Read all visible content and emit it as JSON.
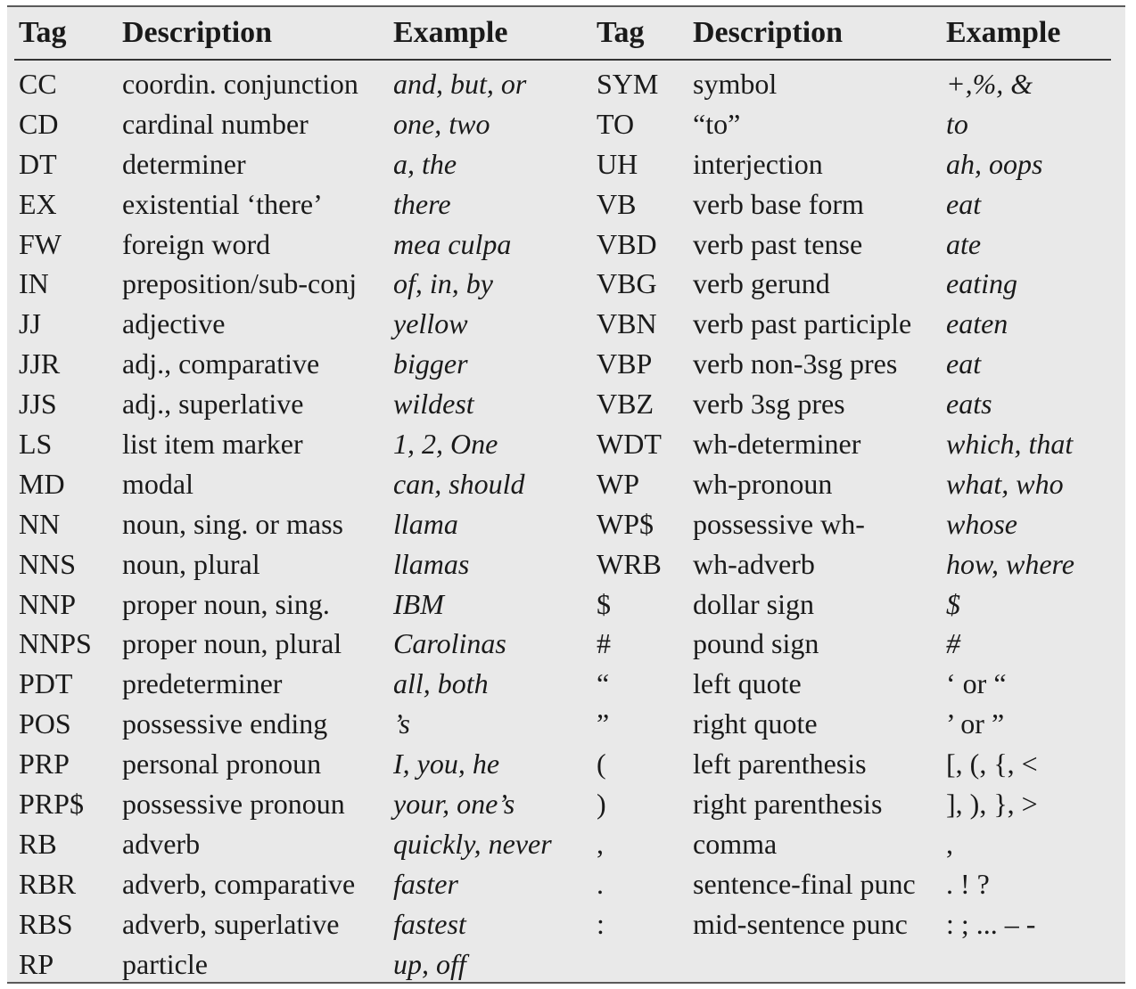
{
  "headers": [
    "Tag",
    "Description",
    "Example",
    "Tag",
    "Description",
    "Example"
  ],
  "rows": [
    {
      "tag1": "CC",
      "desc1": "coordin. conjunction",
      "ex1": "and, but, or",
      "tag2": "SYM",
      "desc2": "symbol",
      "ex2": "+,%, &"
    },
    {
      "tag1": "CD",
      "desc1": "cardinal number",
      "ex1": "one, two",
      "tag2": "TO",
      "desc2": "“to”",
      "ex2": "to"
    },
    {
      "tag1": "DT",
      "desc1": "determiner",
      "ex1": "a, the",
      "tag2": "UH",
      "desc2": "interjection",
      "ex2": "ah, oops"
    },
    {
      "tag1": "EX",
      "desc1": "existential ‘there’",
      "ex1": "there",
      "tag2": "VB",
      "desc2": "verb base form",
      "ex2": "eat"
    },
    {
      "tag1": "FW",
      "desc1": "foreign word",
      "ex1": "mea culpa",
      "tag2": "VBD",
      "desc2": "verb past tense",
      "ex2": "ate"
    },
    {
      "tag1": "IN",
      "desc1": "preposition/sub-conj",
      "ex1": "of, in, by",
      "tag2": "VBG",
      "desc2": "verb gerund",
      "ex2": "eating"
    },
    {
      "tag1": "JJ",
      "desc1": "adjective",
      "ex1": "yellow",
      "tag2": "VBN",
      "desc2": "verb past participle",
      "ex2": "eaten"
    },
    {
      "tag1": "JJR",
      "desc1": "adj., comparative",
      "ex1": "bigger",
      "tag2": "VBP",
      "desc2": "verb non-3sg pres",
      "ex2": "eat"
    },
    {
      "tag1": "JJS",
      "desc1": "adj., superlative",
      "ex1": "wildest",
      "tag2": "VBZ",
      "desc2": "verb 3sg pres",
      "ex2": "eats"
    },
    {
      "tag1": "LS",
      "desc1": "list item marker",
      "ex1": "1, 2, One",
      "tag2": "WDT",
      "desc2": "wh-determiner",
      "ex2": "which, that"
    },
    {
      "tag1": "MD",
      "desc1": "modal",
      "ex1": "can, should",
      "tag2": "WP",
      "desc2": "wh-pronoun",
      "ex2": "what, who"
    },
    {
      "tag1": "NN",
      "desc1": "noun, sing. or mass",
      "ex1": "llama",
      "tag2": "WP$",
      "desc2": "possessive wh-",
      "ex2": "whose"
    },
    {
      "tag1": "NNS",
      "desc1": "noun, plural",
      "ex1": "llamas",
      "tag2": "WRB",
      "desc2": "wh-adverb",
      "ex2": "how, where"
    },
    {
      "tag1": "NNP",
      "desc1": "proper noun, sing.",
      "ex1": "IBM",
      "tag2": "$",
      "desc2": "dollar sign",
      "ex2": "$"
    },
    {
      "tag1": "NNPS",
      "desc1": "proper noun, plural",
      "ex1": "Carolinas",
      "tag2": "#",
      "desc2": "pound sign",
      "ex2": "#"
    },
    {
      "tag1": "PDT",
      "desc1": "predeterminer",
      "ex1": "all, both",
      "tag2": "“",
      "desc2": "left quote",
      "ex2": "‘ or “",
      "ex2_plain": true
    },
    {
      "tag1": "POS",
      "desc1": "possessive ending",
      "ex1": "’s",
      "tag2": "”",
      "desc2": "right quote",
      "ex2": "’ or ”",
      "ex2_plain": true
    },
    {
      "tag1": "PRP",
      "desc1": "personal pronoun",
      "ex1": "I, you, he",
      "tag2": "(",
      "desc2": "left parenthesis",
      "ex2": "[, (, {, <",
      "ex2_plain": true
    },
    {
      "tag1": "PRP$",
      "desc1": "possessive pronoun",
      "ex1": "your, one’s",
      "tag2": ")",
      "desc2": "right parenthesis",
      "ex2": "], ), }, >",
      "ex2_plain": true
    },
    {
      "tag1": "RB",
      "desc1": "adverb",
      "ex1": "quickly, never",
      "tag2": ",",
      "desc2": "comma",
      "ex2": ",",
      "ex2_plain": true
    },
    {
      "tag1": "RBR",
      "desc1": "adverb, comparative",
      "ex1": "faster",
      "tag2": ".",
      "desc2": "sentence-final punc",
      "ex2": ". ! ?",
      "ex2_plain": true
    },
    {
      "tag1": "RBS",
      "desc1": "adverb, superlative",
      "ex1": "fastest",
      "tag2": ":",
      "desc2": "mid-sentence punc",
      "ex2": ": ; ... – -",
      "ex2_plain": true
    },
    {
      "tag1": "RP",
      "desc1": "particle",
      "ex1": "up, off",
      "tag2": "",
      "desc2": "",
      "ex2": ""
    }
  ]
}
